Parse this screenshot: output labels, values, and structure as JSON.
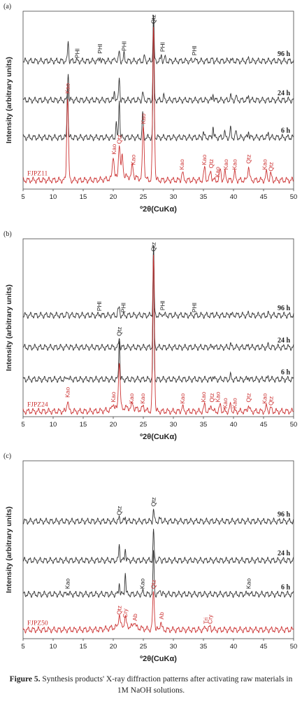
{
  "panels": [
    {
      "label": "(a)",
      "ylabel": "Intensity (arbitrary units)",
      "xlabel": "º2θ(CuKα)",
      "xticks": [
        "5",
        "10",
        "15",
        "20",
        "25",
        "30",
        "35",
        "40",
        "45",
        "50"
      ]
    },
    {
      "label": "(b)",
      "ylabel": "Intensity (arbitrary units)",
      "xlabel": "º2θ(CuKα)",
      "xticks": [
        "5",
        "10",
        "15",
        "20",
        "25",
        "30",
        "35",
        "40",
        "45",
        "50"
      ]
    },
    {
      "label": "(c)",
      "ylabel": "Intensity (arbitrary units)",
      "xlabel": "º2θ(CuKα)",
      "xticks": [
        "5",
        "10",
        "15",
        "20",
        "25",
        "30",
        "35",
        "40",
        "45",
        "50"
      ]
    }
  ],
  "caption": {
    "label": "Figure 5.",
    "text": " Synthesis products' X-ray diffraction patterns after activating raw materials in 1M NaOH solutions."
  },
  "colors": {
    "raw": "#cc3333",
    "product": "#333333"
  },
  "chart_data": [
    {
      "type": "line",
      "xlim": [
        5,
        50
      ],
      "xlabel": "º2θ(CuKα)",
      "ylabel": "Intensity (arbitrary units)",
      "series": [
        {
          "name": "96 h",
          "baseline": 0.72,
          "peaks": [
            [
              12.5,
              0.45
            ],
            [
              17.8,
              0.1
            ],
            [
              20.3,
              0.08
            ],
            [
              21.0,
              0.22
            ],
            [
              21.8,
              0.16
            ],
            [
              25.2,
              0.1
            ],
            [
              26.7,
              1.0
            ],
            [
              28.0,
              0.14
            ],
            [
              28.6,
              0.08
            ],
            [
              33.5,
              0.06
            ],
            [
              36.5,
              0.05
            ],
            [
              39.5,
              0.05
            ],
            [
              42.5,
              0.04
            ]
          ]
        },
        {
          "name": "24 h",
          "baseline": 0.5,
          "peaks": [
            [
              12.5,
              0.35
            ],
            [
              20.2,
              0.12
            ],
            [
              21.0,
              0.3
            ],
            [
              24.9,
              0.1
            ],
            [
              26.7,
              1.0
            ],
            [
              28.4,
              0.05
            ],
            [
              36.6,
              0.08
            ],
            [
              39.5,
              0.06
            ],
            [
              40.4,
              0.05
            ],
            [
              42.5,
              0.05
            ]
          ]
        },
        {
          "name": "6 h",
          "baseline": 0.29,
          "peaks": [
            [
              12.4,
              0.5
            ],
            [
              20.5,
              0.12
            ],
            [
              21.0,
              0.35
            ],
            [
              24.9,
              0.22
            ],
            [
              26.7,
              1.0
            ],
            [
              35.0,
              0.05
            ],
            [
              36.6,
              0.1
            ],
            [
              38.5,
              0.05
            ],
            [
              39.5,
              0.08
            ],
            [
              40.4,
              0.05
            ],
            [
              42.5,
              0.06
            ],
            [
              45.8,
              0.04
            ]
          ]
        },
        {
          "name": "FJPZ11",
          "baseline": 0.05,
          "peaks": [
            [
              12.4,
              0.55
            ],
            [
              20.0,
              0.15
            ],
            [
              21.0,
              0.22
            ],
            [
              21.5,
              0.14
            ],
            [
              23.2,
              0.08
            ],
            [
              25.0,
              0.35
            ],
            [
              26.7,
              1.0
            ],
            [
              31.5,
              0.05
            ],
            [
              35.2,
              0.08
            ],
            [
              36.2,
              0.06
            ],
            [
              37.8,
              0.07
            ],
            [
              38.6,
              0.05
            ],
            [
              40.2,
              0.05
            ],
            [
              42.5,
              0.09
            ],
            [
              45.5,
              0.05
            ],
            [
              46.2,
              0.04
            ]
          ]
        }
      ],
      "annotations": [
        {
          "text": "PHI",
          "x": 14.0,
          "series": "96 h"
        },
        {
          "text": "PHI",
          "x": 17.8,
          "series": "96 h"
        },
        {
          "text": "PHI",
          "x": 21.8,
          "series": "96 h"
        },
        {
          "text": "PHI",
          "x": 28.2,
          "series": "96 h"
        },
        {
          "text": "PHI",
          "x": 33.5,
          "series": "96 h"
        },
        {
          "text": "Qtz",
          "x": 26.7,
          "series": "96 h"
        },
        {
          "text": "Kao",
          "x": 12.4,
          "series": "FJPZ11"
        },
        {
          "text": "Kao",
          "x": 20.1,
          "series": "FJPZ11"
        },
        {
          "text": "Qtz",
          "x": 21.0,
          "series": "FJPZ11"
        },
        {
          "text": "Kao",
          "x": 23.3,
          "series": "FJPZ11"
        },
        {
          "text": "Kao",
          "x": 25.0,
          "series": "FJPZ11"
        },
        {
          "text": "Kao",
          "x": 31.4,
          "series": "FJPZ11"
        },
        {
          "text": "Kao",
          "x": 35.1,
          "series": "FJPZ11"
        },
        {
          "text": "Qtz",
          "x": 36.3,
          "series": "FJPZ11"
        },
        {
          "text": "Kao",
          "x": 37.3,
          "series": "FJPZ11"
        },
        {
          "text": "Kao",
          "x": 38.7,
          "series": "FJPZ11"
        },
        {
          "text": "Kao",
          "x": 40.2,
          "series": "FJPZ11"
        },
        {
          "text": "Qtz",
          "x": 42.5,
          "series": "FJPZ11"
        },
        {
          "text": "Kao",
          "x": 45.2,
          "series": "FJPZ11"
        },
        {
          "text": "Qtz",
          "x": 46.2,
          "series": "FJPZ11"
        }
      ]
    },
    {
      "type": "line",
      "xlim": [
        5,
        50
      ],
      "xlabel": "º2θ(CuKα)",
      "ylabel": "Intensity (arbitrary units)",
      "series": [
        {
          "name": "96 h",
          "baseline": 0.57,
          "peaks": [
            [
              12.4,
              0.03
            ],
            [
              17.8,
              0.02
            ],
            [
              20.8,
              0.06
            ],
            [
              21.0,
              0.1
            ],
            [
              26.7,
              1.0
            ],
            [
              28.2,
              0.03
            ],
            [
              36.6,
              0.02
            ],
            [
              39.5,
              0.03
            ],
            [
              40.4,
              0.02
            ],
            [
              42.5,
              0.02
            ],
            [
              45.8,
              0.02
            ]
          ]
        },
        {
          "name": "24 h",
          "baseline": 0.39,
          "peaks": [
            [
              12.4,
              0.02
            ],
            [
              21.0,
              0.1
            ],
            [
              26.7,
              1.0
            ],
            [
              36.6,
              0.02
            ],
            [
              39.5,
              0.03
            ],
            [
              42.5,
              0.02
            ],
            [
              45.8,
              0.02
            ]
          ]
        },
        {
          "name": "6 h",
          "baseline": 0.21,
          "peaks": [
            [
              12.4,
              0.03
            ],
            [
              21.0,
              0.32
            ],
            [
              26.7,
              1.0
            ],
            [
              36.6,
              0.03
            ],
            [
              39.5,
              0.03
            ],
            [
              42.5,
              0.02
            ],
            [
              45.8,
              0.02
            ]
          ]
        },
        {
          "name": "FJPZ24",
          "baseline": 0.03,
          "peaks": [
            [
              12.4,
              0.07
            ],
            [
              20.0,
              0.04
            ],
            [
              21.0,
              0.3
            ],
            [
              23.2,
              0.03
            ],
            [
              25.0,
              0.03
            ],
            [
              26.7,
              1.0
            ],
            [
              31.5,
              0.03
            ],
            [
              35.2,
              0.04
            ],
            [
              36.3,
              0.04
            ],
            [
              37.8,
              0.04
            ],
            [
              39.5,
              0.04
            ],
            [
              42.5,
              0.04
            ],
            [
              45.5,
              0.03
            ],
            [
              46.2,
              0.02
            ]
          ]
        }
      ],
      "annotations": [
        {
          "text": "PHI",
          "x": 17.7,
          "series": "96 h"
        },
        {
          "text": "PHI",
          "x": 21.7,
          "series": "96 h"
        },
        {
          "text": "PHI",
          "x": 28.2,
          "series": "96 h"
        },
        {
          "text": "PHI",
          "x": 33.5,
          "series": "96 h"
        },
        {
          "text": "Qtz",
          "x": 26.7,
          "series": "96 h"
        },
        {
          "text": "Qtz",
          "x": 21.0,
          "series": "6 h"
        },
        {
          "text": "Kao",
          "x": 12.4,
          "series": "FJPZ24"
        },
        {
          "text": "Kao",
          "x": 20.0,
          "series": "FJPZ24"
        },
        {
          "text": "Kao",
          "x": 23.0,
          "series": "FJPZ24"
        },
        {
          "text": "Kao",
          "x": 24.9,
          "series": "FJPZ24"
        },
        {
          "text": "Kao",
          "x": 31.5,
          "series": "FJPZ24"
        },
        {
          "text": "Kao",
          "x": 35.0,
          "series": "FJPZ24"
        },
        {
          "text": "Qtz",
          "x": 36.4,
          "series": "FJPZ24"
        },
        {
          "text": "Kao",
          "x": 37.4,
          "series": "FJPZ24"
        },
        {
          "text": "Kao",
          "x": 38.6,
          "series": "FJPZ24"
        },
        {
          "text": "Kao",
          "x": 40.2,
          "series": "FJPZ24"
        },
        {
          "text": "Qtz",
          "x": 42.5,
          "series": "FJPZ24"
        },
        {
          "text": "Kao",
          "x": 45.2,
          "series": "FJPZ24"
        },
        {
          "text": "Qtz",
          "x": 46.2,
          "series": "FJPZ24"
        }
      ]
    },
    {
      "type": "line",
      "xlim": [
        5,
        50
      ],
      "xlabel": "º2θ(CuKα)",
      "ylabel": "Intensity (arbitrary units)",
      "series": [
        {
          "name": "96 h",
          "baseline": 0.66,
          "peaks": [
            [
              21.0,
              0.06
            ],
            [
              22.0,
              0.07
            ],
            [
              26.7,
              0.22
            ],
            [
              27.7,
              0.04
            ],
            [
              28.0,
              0.04
            ]
          ]
        },
        {
          "name": "24 h",
          "baseline": 0.44,
          "peaks": [
            [
              21.0,
              0.18
            ],
            [
              22.0,
              0.14
            ],
            [
              26.7,
              0.33
            ],
            [
              27.8,
              0.03
            ]
          ]
        },
        {
          "name": "6 h",
          "baseline": 0.25,
          "peaks": [
            [
              12.4,
              0.02
            ],
            [
              21.0,
              0.1
            ],
            [
              22.0,
              0.18
            ],
            [
              24.9,
              0.02
            ],
            [
              26.7,
              0.35
            ],
            [
              27.8,
              0.05
            ],
            [
              42.5,
              0.02
            ]
          ]
        },
        {
          "name": "FJPZ50",
          "baseline": 0.05,
          "peaks": [
            [
              21.0,
              0.08
            ],
            [
              22.0,
              0.06
            ],
            [
              23.5,
              0.04
            ],
            [
              26.7,
              0.25
            ],
            [
              27.9,
              0.05
            ],
            [
              35.4,
              0.02
            ],
            [
              36.1,
              0.02
            ]
          ]
        }
      ],
      "annotations": [
        {
          "text": "Qtz",
          "x": 21.0,
          "series": "96 h"
        },
        {
          "text": "Qtz",
          "x": 26.7,
          "series": "96 h"
        },
        {
          "text": "Kao",
          "x": 12.4,
          "series": "6 h"
        },
        {
          "text": "Kao",
          "x": 24.8,
          "series": "6 h"
        },
        {
          "text": "Kao",
          "x": 42.5,
          "series": "6 h"
        },
        {
          "text": "Qtz",
          "x": 21.0,
          "series": "FJPZ50"
        },
        {
          "text": "Cry",
          "x": 22.0,
          "series": "FJPZ50"
        },
        {
          "text": "Ab",
          "x": 23.6,
          "series": "FJPZ50"
        },
        {
          "text": "Qtz",
          "x": 26.7,
          "series": "FJPZ50"
        },
        {
          "text": "Ab",
          "x": 28.0,
          "series": "FJPZ50"
        },
        {
          "text": "Tri",
          "x": 35.4,
          "series": "FJPZ50"
        },
        {
          "text": "Cry",
          "x": 36.1,
          "series": "FJPZ50"
        }
      ]
    }
  ]
}
